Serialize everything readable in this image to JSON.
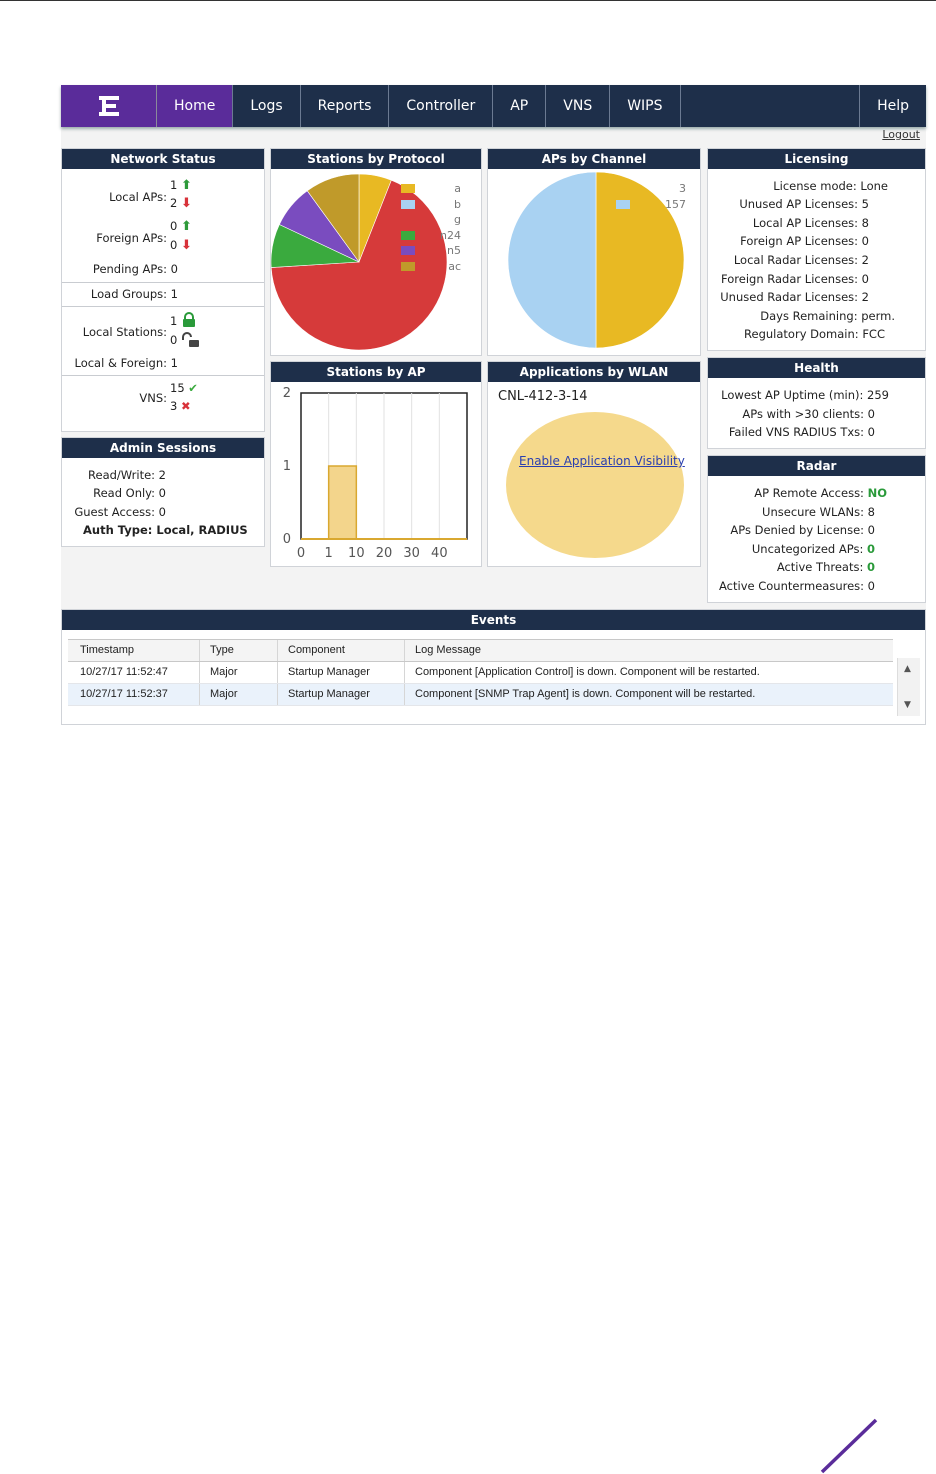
{
  "nav": {
    "tabs": [
      {
        "label": "Home"
      },
      {
        "label": "Logs"
      },
      {
        "label": "Reports"
      },
      {
        "label": "Controller"
      },
      {
        "label": "AP"
      },
      {
        "label": "VNS"
      },
      {
        "label": "WIPS"
      }
    ],
    "help": "Help",
    "logout": "Logout"
  },
  "network_status": {
    "title": "Network Status",
    "local_aps_label": "Local APs:",
    "local_aps_up": "1",
    "local_aps_down": "2",
    "foreign_aps_label": "Foreign APs:",
    "foreign_aps_up": "0",
    "foreign_aps_down": "0",
    "pending_aps": "Pending APs: 0",
    "load_groups": "Load Groups: 1",
    "local_stations_label": "Local Stations:",
    "local_stations_secure": "1",
    "local_stations_open": "0",
    "local_foreign": "Local & Foreign: 1",
    "vns_label": "VNS:",
    "vns_ok": "15",
    "vns_fail": "3"
  },
  "admin_sessions": {
    "title": "Admin Sessions",
    "read_write": "Read/Write: 2",
    "read_only": "Read Only: 0",
    "guest_access": "Guest Access: 0",
    "auth_type": "Auth Type: Local, RADIUS"
  },
  "stations_by_protocol": {
    "title": "Stations by Protocol",
    "legend": [
      "a",
      "b",
      "g",
      "n24",
      "n5",
      "ac"
    ]
  },
  "aps_by_channel": {
    "title": "APs by Channel",
    "legend": [
      "3",
      "157"
    ]
  },
  "stations_by_ap": {
    "title": "Stations by AP"
  },
  "applications_by_wlan": {
    "title": "Applications by WLAN",
    "wlan": "CNL-412-3-14",
    "link": "Enable Application Visibility"
  },
  "licensing": {
    "title": "Licensing",
    "rows": [
      "License mode: Lone",
      "Unused AP Licenses: 5",
      "Local AP Licenses: 8",
      "Foreign AP Licenses: 0",
      "Local Radar Licenses: 2",
      "Foreign Radar Licenses: 0",
      "Unused Radar Licenses: 2",
      "Days Remaining: perm.",
      "Regulatory Domain: FCC"
    ]
  },
  "health": {
    "title": "Health",
    "rows": [
      "Lowest AP Uptime (min): 259",
      "APs with >30 clients: 0",
      "Failed VNS RADIUS Txs: 0"
    ]
  },
  "radar": {
    "title": "Radar",
    "remote_access_label": "AP Remote Access:",
    "remote_access_value": "NO",
    "unsecure_wlans": "Unsecure WLANs: 8",
    "aps_denied": "APs Denied by License: 0",
    "uncategorized_label": "Uncategorized APs:",
    "uncategorized_value": "0",
    "active_threats_label": "Active Threats:",
    "active_threats_value": "0",
    "countermeasures": "Active Countermeasures: 0"
  },
  "events": {
    "title": "Events",
    "columns": [
      "Timestamp",
      "Type",
      "Component",
      "Log Message"
    ],
    "rows": [
      {
        "timestamp": "10/27/17 11:52:47",
        "type": "Major",
        "component": "Startup Manager",
        "message": "Component [Application Control] is down. Component will be restarted."
      },
      {
        "timestamp": "10/27/17 11:52:37",
        "type": "Major",
        "component": "Startup Manager",
        "message": "Component [SNMP Trap Agent] is down. Component will be restarted."
      }
    ]
  },
  "colors": {
    "nav_bg": "#1e2f4a",
    "brand_purple": "#5a2c9a",
    "protocol_a": "#e8b923",
    "protocol_b": "#a9d2f2",
    "protocol_g": "#d63a3a",
    "protocol_n24": "#3aaa3e",
    "protocol_n5": "#7a4cbf",
    "protocol_ac": "#c09a2a",
    "channel_3": "#e8b923",
    "channel_157": "#a9d2f2"
  },
  "chart_data": [
    {
      "type": "pie",
      "title": "Stations by Protocol",
      "categories": [
        "a",
        "b",
        "g",
        "n24",
        "n5",
        "ac"
      ],
      "values": [
        6,
        0,
        68,
        8,
        8,
        10
      ]
    },
    {
      "type": "pie",
      "title": "APs by Channel",
      "categories": [
        "3",
        "157"
      ],
      "values": [
        50,
        50
      ]
    },
    {
      "type": "bar",
      "title": "Stations by AP",
      "categories": [
        "0",
        "1",
        "10",
        "20",
        "30",
        "40"
      ],
      "values": [
        0,
        1,
        0,
        0,
        0,
        0
      ],
      "yticks": [
        "0",
        "1",
        "2"
      ],
      "ylim": [
        0,
        2
      ]
    }
  ]
}
